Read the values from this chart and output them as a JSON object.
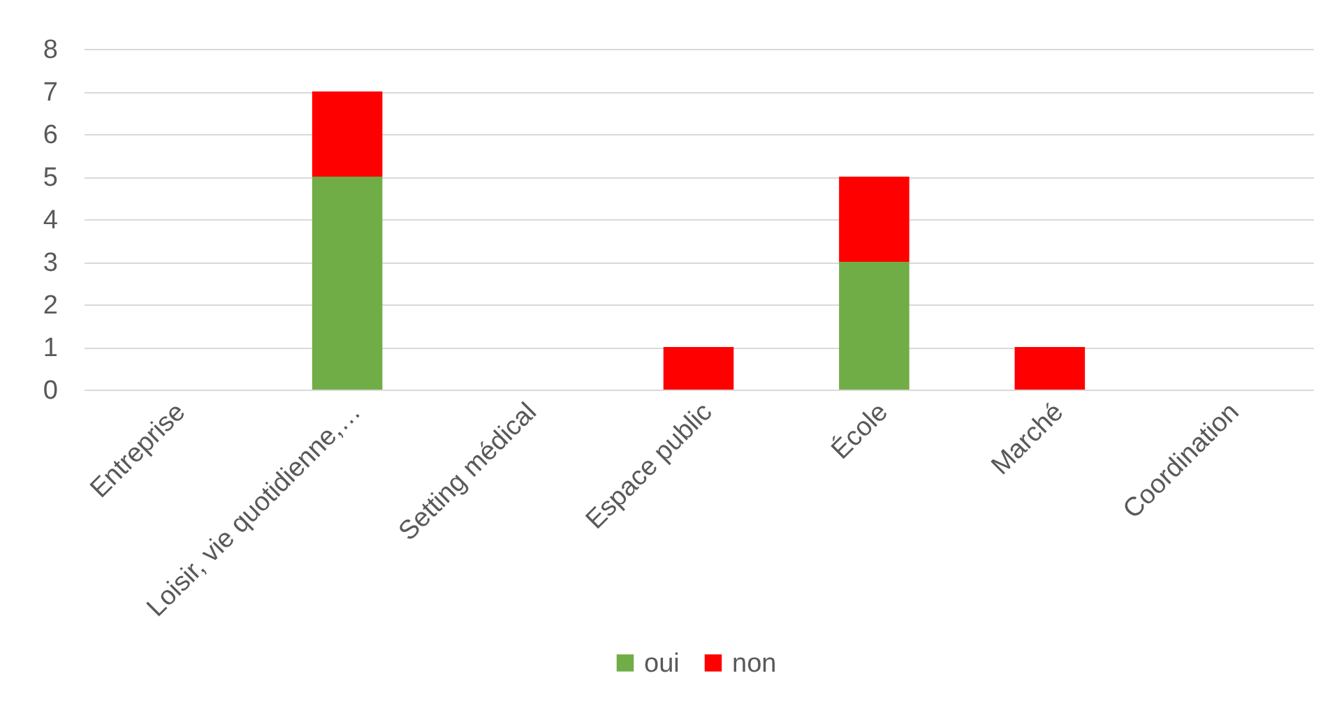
{
  "chart_data": {
    "type": "bar",
    "stacked": true,
    "categories": [
      "Entreprise",
      "Loisir, vie quotidienne,…",
      "Setting médical",
      "Espace public",
      "École",
      "Marché",
      "Coordination"
    ],
    "series": [
      {
        "name": "oui",
        "color": "#70ad47",
        "values": [
          0,
          5,
          0,
          0,
          3,
          0,
          0
        ]
      },
      {
        "name": "non",
        "color": "#ff0000",
        "values": [
          0,
          2,
          0,
          1,
          2,
          1,
          0
        ]
      }
    ],
    "ylim": [
      0,
      8
    ],
    "yticks": [
      0,
      1,
      2,
      3,
      4,
      5,
      6,
      7,
      8
    ],
    "grid": "y",
    "legend": "bottom"
  }
}
